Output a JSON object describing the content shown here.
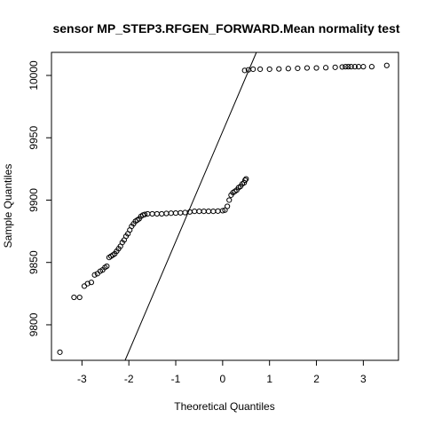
{
  "chart_data": {
    "type": "scatter",
    "title": "sensor MP_STEP3.RFGEN_FORWARD.Mean normality test",
    "xlabel": "Theoretical Quantiles",
    "ylabel": "Sample Quantiles",
    "xlim": [
      -3.65,
      3.75
    ],
    "ylim": [
      9771.5,
      10018.5
    ],
    "xticks": [
      -3,
      -2,
      -1,
      0,
      1,
      2,
      3
    ],
    "yticks": [
      9800,
      9850,
      9900,
      9950,
      10000
    ],
    "grid": false,
    "qq_line": {
      "x": [
        -2.08,
        0.72
      ],
      "y": [
        9771.5,
        10018.5
      ]
    },
    "series": [
      {
        "points": [
          [
            -3.47,
            9778
          ],
          [
            -3.17,
            9822
          ],
          [
            -3.05,
            9822
          ],
          [
            -2.95,
            9831
          ],
          [
            -2.88,
            9833
          ],
          [
            -2.8,
            9834
          ],
          [
            -2.73,
            9840
          ],
          [
            -2.67,
            9841
          ],
          [
            -2.61,
            9843
          ],
          [
            -2.56,
            9844
          ],
          [
            -2.51,
            9846
          ],
          [
            -2.47,
            9847
          ],
          [
            -2.42,
            9854
          ],
          [
            -2.38,
            9855
          ],
          [
            -2.34,
            9856
          ],
          [
            -2.3,
            9857
          ],
          [
            -2.26,
            9859
          ],
          [
            -2.22,
            9861
          ],
          [
            -2.18,
            9863
          ],
          [
            -2.14,
            9866
          ],
          [
            -2.1,
            9868
          ],
          [
            -2.06,
            9871
          ],
          [
            -2.02,
            9873
          ],
          [
            -1.98,
            9876
          ],
          [
            -1.94,
            9879
          ],
          [
            -1.9,
            9881
          ],
          [
            -1.86,
            9883
          ],
          [
            -1.82,
            9884
          ],
          [
            -1.78,
            9885
          ],
          [
            -1.74,
            9887
          ],
          [
            -1.7,
            9888
          ],
          [
            -1.66,
            9888.5
          ],
          [
            -1.6,
            9889
          ],
          [
            -1.5,
            9889
          ],
          [
            -1.4,
            9889
          ],
          [
            -1.3,
            9889
          ],
          [
            -1.2,
            9889.3
          ],
          [
            -1.1,
            9889.5
          ],
          [
            -1.0,
            9889.6
          ],
          [
            -0.9,
            9889.8
          ],
          [
            -0.8,
            9890
          ],
          [
            -0.7,
            9890.5
          ],
          [
            -0.6,
            9891
          ],
          [
            -0.5,
            9891
          ],
          [
            -0.4,
            9891
          ],
          [
            -0.3,
            9891
          ],
          [
            -0.2,
            9891
          ],
          [
            -0.1,
            9891.2
          ],
          [
            0.0,
            9891.5
          ],
          [
            0.05,
            9892
          ],
          [
            0.1,
            9895
          ],
          [
            0.14,
            9900
          ],
          [
            0.18,
            9904
          ],
          [
            0.22,
            9906
          ],
          [
            0.26,
            9907
          ],
          [
            0.3,
            9908
          ],
          [
            0.34,
            9910
          ],
          [
            0.38,
            9911
          ],
          [
            0.42,
            9913
          ],
          [
            0.46,
            9914
          ],
          [
            0.48,
            9916
          ],
          [
            0.5,
            9917
          ],
          [
            0.47,
            10004
          ],
          [
            0.55,
            10004.5
          ],
          [
            0.65,
            10005
          ],
          [
            0.8,
            10005
          ],
          [
            1.0,
            10005
          ],
          [
            1.2,
            10005.2
          ],
          [
            1.4,
            10005.5
          ],
          [
            1.6,
            10005.7
          ],
          [
            1.8,
            10006
          ],
          [
            2.0,
            10006
          ],
          [
            2.2,
            10006.2
          ],
          [
            2.4,
            10006.5
          ],
          [
            2.55,
            10006.8
          ],
          [
            2.62,
            10007
          ],
          [
            2.68,
            10007
          ],
          [
            2.74,
            10007
          ],
          [
            2.82,
            10007
          ],
          [
            2.9,
            10007
          ],
          [
            3.0,
            10007
          ],
          [
            3.18,
            10007
          ],
          [
            3.5,
            10008
          ]
        ]
      }
    ]
  }
}
